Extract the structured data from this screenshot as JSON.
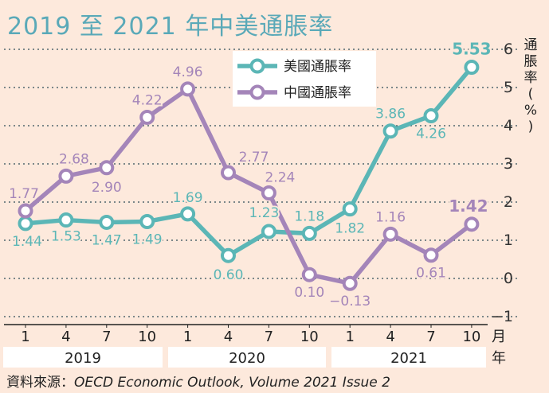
{
  "title": "2019 至 2021 年中美通脹率",
  "source_label": "資料來源：",
  "source_org": "OECD  Economic Outlook, Volume 2021 Issue 2",
  "chart_data": {
    "type": "line",
    "title": "2019 至 2021 年中美通脹率",
    "ylabel": "通脹率（%）",
    "month_unit": "月",
    "year_unit": "年",
    "x": [
      "2019-01",
      "2019-04",
      "2019-07",
      "2019-10",
      "2020-01",
      "2020-04",
      "2020-07",
      "2020-10",
      "2021-01",
      "2021-04",
      "2021-07",
      "2021-10"
    ],
    "month_labels": [
      "1",
      "4",
      "7",
      "10",
      "1",
      "4",
      "7",
      "10",
      "1",
      "4",
      "7",
      "10"
    ],
    "years": [
      "2019",
      "2020",
      "2021"
    ],
    "ylim": [
      -1,
      6
    ],
    "yticks": [
      -1,
      0,
      1,
      2,
      3,
      4,
      5,
      6
    ],
    "grid": true,
    "legend_position": "top-center",
    "series": [
      {
        "name": "美國通脹率",
        "color": "#5bb6b6",
        "values": [
          1.44,
          1.53,
          1.47,
          1.49,
          1.69,
          0.6,
          1.23,
          1.18,
          1.82,
          3.86,
          4.26,
          5.53
        ],
        "labels": [
          "1.44",
          "1.53",
          "1.47",
          "1.49",
          "1.69",
          "0.60",
          "1.23",
          "1.18",
          "1.82",
          "3.86",
          "4.26",
          "5.53"
        ]
      },
      {
        "name": "中國通脹率",
        "color": "#a485b9",
        "values": [
          1.77,
          2.68,
          2.9,
          4.22,
          4.96,
          2.77,
          2.24,
          0.1,
          -0.13,
          1.16,
          0.61,
          1.42
        ],
        "labels": [
          "1.77",
          "2.68",
          "2.90",
          "4.22",
          "4.96",
          "2.77",
          "2.24",
          "0.10",
          "−0.13",
          "1.16",
          "0.61",
          "1.42"
        ]
      }
    ]
  }
}
